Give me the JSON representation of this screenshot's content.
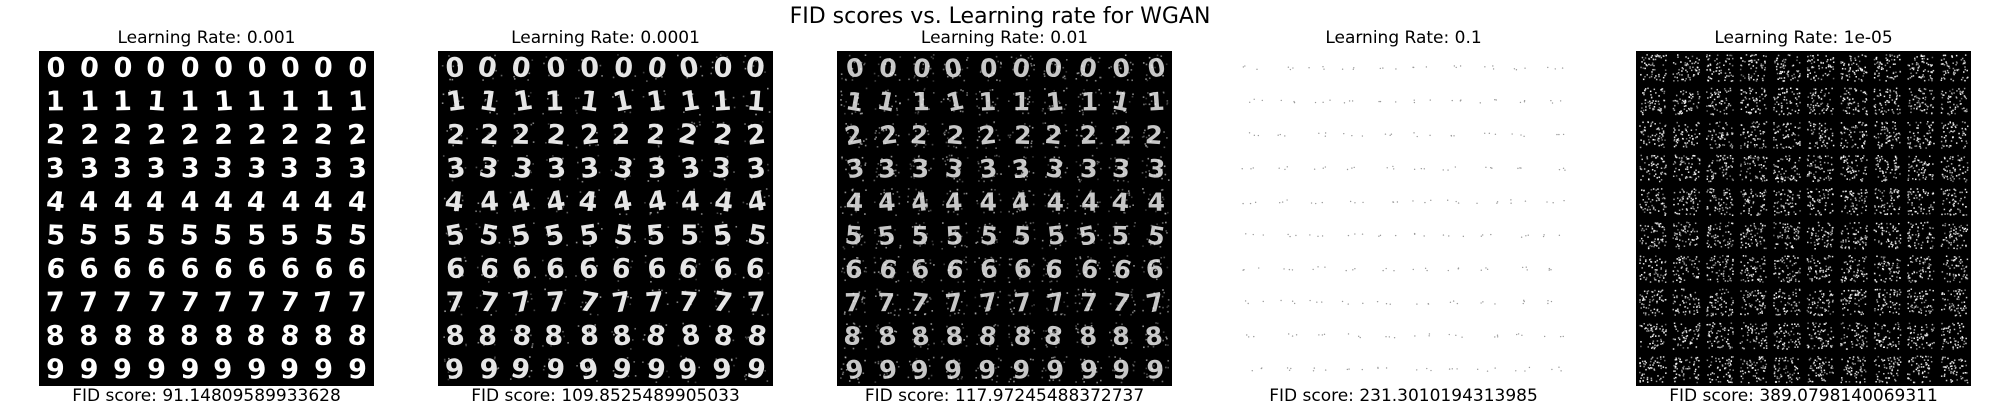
{
  "figure": {
    "title": "FID scores vs. Learning rate for WGAN"
  },
  "panels": [
    {
      "title": "Learning Rate: 0.001",
      "fid": "FID score: 91.14809589933628",
      "style": "clean"
    },
    {
      "title": "Learning Rate: 0.0001",
      "fid": "FID score: 109.8525489905033",
      "style": "soft"
    },
    {
      "title": "Learning Rate: 0.01",
      "fid": "FID score: 117.97245488372737",
      "style": "noisy"
    },
    {
      "title": "Learning Rate: 0.1",
      "fid": "FID score: 231.3010194313985",
      "style": "dots"
    },
    {
      "title": "Learning Rate: 1e-05",
      "fid": "FID score: 389.0798140069311",
      "style": "static"
    }
  ],
  "grid": {
    "rows_digits": [
      "0",
      "1",
      "2",
      "3",
      "4",
      "5",
      "6",
      "7",
      "8",
      "9"
    ],
    "cols": 10
  },
  "colors": {
    "background": "#000000",
    "digit": "#ffffff",
    "light_background": "#ffffff",
    "dot": "#9a9a9a"
  }
}
